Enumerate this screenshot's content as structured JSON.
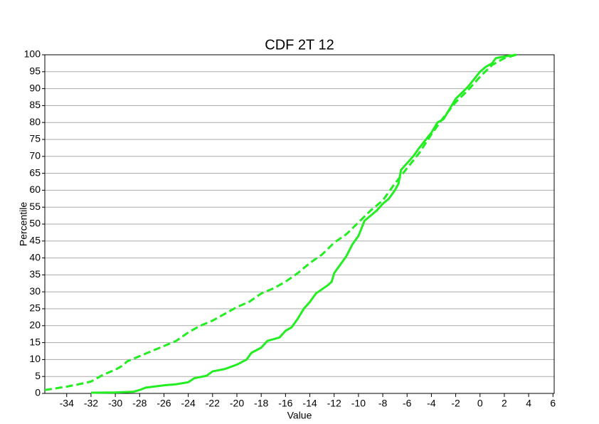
{
  "chart_data": {
    "type": "line",
    "title": "CDF 2T 12",
    "xlabel": "Value",
    "ylabel": "Percentile",
    "xlim": [
      -35.8,
      6.1
    ],
    "ylim": [
      0,
      100
    ],
    "xticks": [
      -34,
      -32,
      -30,
      -28,
      -26,
      -24,
      -22,
      -20,
      -18,
      -16,
      -14,
      -12,
      -10,
      -8,
      -6,
      -4,
      -2,
      0,
      2,
      4,
      6
    ],
    "yticks": [
      0,
      5,
      10,
      15,
      20,
      25,
      30,
      35,
      40,
      45,
      50,
      55,
      60,
      65,
      70,
      75,
      80,
      85,
      90,
      95,
      100
    ],
    "grid": true,
    "series": [
      {
        "color": "#22ee22",
        "dashed": false,
        "x": [
          -32,
          -30,
          -28.5,
          -28,
          -27.5,
          -26,
          -25,
          -24,
          -23.5,
          -22.5,
          -22,
          -21,
          -20,
          -19.2,
          -18.8,
          -18,
          -17.5,
          -16.5,
          -16,
          -15.5,
          -15,
          -14.5,
          -14,
          -13.5,
          -12.5,
          -12.2,
          -12,
          -11.5,
          -11,
          -10.5,
          -10,
          -9.5,
          -9,
          -8.5,
          -8,
          -7.5,
          -7,
          -6.7,
          -6.5,
          -6,
          -5.5,
          -5,
          -4,
          -3.5,
          -3,
          -2.5,
          -2,
          -1,
          0,
          0.5,
          1,
          1.3,
          2,
          3
        ],
        "values": [
          0.2,
          0.3,
          0.5,
          1,
          1.7,
          2.4,
          2.7,
          3.3,
          4.5,
          5.2,
          6.5,
          7.2,
          8.5,
          10,
          12,
          13.5,
          15.5,
          16.5,
          18.5,
          19.5,
          22,
          25,
          27,
          29.5,
          32,
          33,
          35.5,
          38,
          40.5,
          44,
          46.5,
          51,
          52.5,
          54,
          56,
          57.5,
          60,
          62,
          66,
          68,
          70,
          72.5,
          77,
          80,
          81,
          84,
          87,
          90.5,
          95,
          96.5,
          97.5,
          99,
          99.5,
          100
        ]
      },
      {
        "color": "#22ee22",
        "dashed": true,
        "x": [
          -35.8,
          -34,
          -33,
          -32,
          -31,
          -30,
          -29.5,
          -29,
          -28,
          -27,
          -26,
          -25,
          -24,
          -23,
          -22,
          -21,
          -20,
          -19,
          -18,
          -17,
          -16,
          -15,
          -14,
          -13,
          -12,
          -11,
          -10,
          -9,
          -8,
          -7,
          -6,
          -5,
          -4,
          -3,
          -2,
          -1,
          0,
          1,
          2,
          3
        ],
        "values": [
          1,
          2,
          2.7,
          3.5,
          5.5,
          7,
          8,
          9.5,
          11,
          12.5,
          14,
          15.5,
          18,
          20,
          21.5,
          23.5,
          25.5,
          27,
          29.5,
          31,
          33,
          35.5,
          38.5,
          41,
          44.5,
          47,
          50.5,
          54,
          57,
          62,
          66.5,
          71,
          76.5,
          81.5,
          86,
          89.5,
          93.5,
          97,
          99,
          100
        ]
      }
    ]
  }
}
